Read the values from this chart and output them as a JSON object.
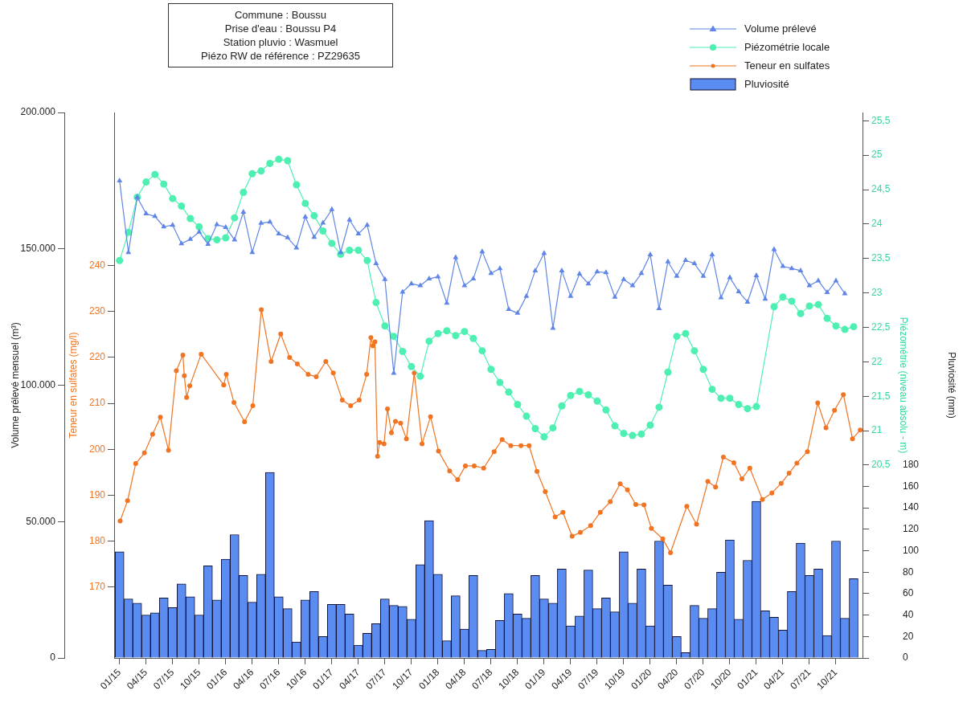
{
  "chart_data": [
    {
      "type": "line",
      "annotations": [
        "Commune : Boussu",
        "Prise d'eau : Boussu P4",
        "Station pluvio : Wasmuel",
        "Piézo RW de référence : PZ29635"
      ],
      "ylabel": "Volume prélevé mensuel (m³)",
      "y2label": "Piézométrie (niveau absolu - m)",
      "y3label": "Teneur en sulfates (mg/l)",
      "x": [
        "2015-01",
        "2015-02",
        "2015-03",
        "2015-04",
        "2015-05",
        "2015-06",
        "2015-07",
        "2015-08",
        "2015-09",
        "2015-10",
        "2015-11",
        "2015-12",
        "2016-01",
        "2016-02",
        "2016-03",
        "2016-04",
        "2016-05",
        "2016-06",
        "2016-07",
        "2016-08",
        "2016-09",
        "2016-10",
        "2016-11",
        "2016-12",
        "2017-01",
        "2017-02",
        "2017-03",
        "2017-04",
        "2017-05",
        "2017-06",
        "2017-07",
        "2017-08",
        "2017-09",
        "2017-10",
        "2017-11",
        "2017-12",
        "2018-01",
        "2018-02",
        "2018-03",
        "2018-04",
        "2018-05",
        "2018-06",
        "2018-07",
        "2018-08",
        "2018-09",
        "2018-10",
        "2018-11",
        "2018-12",
        "2019-01",
        "2019-02",
        "2019-03",
        "2019-04",
        "2019-05",
        "2019-06",
        "2019-07",
        "2019-08",
        "2019-09",
        "2019-10",
        "2019-11",
        "2019-12",
        "2020-01",
        "2020-02",
        "2020-03",
        "2020-04",
        "2020-05",
        "2020-06",
        "2020-07",
        "2020-08",
        "2020-09",
        "2020-10",
        "2020-11",
        "2020-12",
        "2021-01",
        "2021-02",
        "2021-03",
        "2021-04",
        "2021-05",
        "2021-06",
        "2021-07",
        "2021-08",
        "2021-09",
        "2021-10",
        "2021-11",
        "2021-12"
      ],
      "series": [
        {
          "name": "Volume prélevé",
          "color": "#5f86e6",
          "marker": "triangle",
          "values": [
            175000,
            148700,
            168900,
            162900,
            161900,
            158100,
            158700,
            151900,
            153500,
            156200,
            151700,
            158900,
            157900,
            153300,
            163500,
            148700,
            159400,
            159900,
            155500,
            154100,
            150400,
            161700,
            154300,
            159500,
            164400,
            148700,
            160600,
            155500,
            158700,
            144600,
            138800,
            104400,
            134200,
            137200,
            136500,
            139000,
            139800,
            130100,
            146800,
            136500,
            139000,
            149000,
            141000,
            142800,
            127800,
            126400,
            132600,
            142000,
            148400,
            120900,
            142000,
            132600,
            140800,
            137200,
            141600,
            141300,
            132300,
            138800,
            136500,
            141000,
            147900,
            128100,
            145300,
            140000,
            145800,
            144600,
            140000,
            147900,
            132100,
            139500,
            134300,
            130500,
            140200,
            131600,
            149800,
            143600,
            142800,
            142000,
            136500,
            138300,
            134000,
            138300,
            133600,
            null
          ]
        },
        {
          "name": "Piézométrie locale",
          "color": "#4ef0b2",
          "marker": "circle",
          "axis": "y2",
          "values": [
            23.47,
            23.88,
            24.39,
            24.61,
            24.72,
            24.58,
            24.37,
            24.26,
            24.08,
            23.96,
            23.79,
            23.77,
            23.8,
            24.09,
            24.46,
            24.73,
            24.77,
            24.88,
            24.94,
            24.92,
            24.57,
            24.3,
            24.12,
            23.9,
            23.72,
            23.56,
            23.62,
            23.62,
            23.47,
            22.86,
            22.52,
            22.37,
            22.15,
            21.93,
            21.79,
            22.3,
            22.41,
            22.45,
            22.38,
            22.44,
            22.34,
            22.16,
            21.89,
            21.7,
            21.56,
            21.38,
            21.21,
            21.03,
            20.91,
            21.04,
            21.36,
            21.51,
            21.57,
            21.52,
            21.43,
            21.3,
            21.07,
            20.96,
            20.93,
            20.95,
            21.08,
            21.34,
            21.85,
            22.37,
            22.41,
            22.16,
            21.89,
            21.6,
            21.47,
            21.47,
            21.38,
            21.32,
            21.35,
            null,
            22.8,
            22.94,
            22.88,
            22.7,
            22.81,
            22.83,
            22.63,
            22.52,
            22.47,
            22.51
          ]
        },
        {
          "name": "Teneur en sulfates",
          "color": "#f07422",
          "marker": "circle",
          "axis": "y3",
          "x": [
            "2015-01-03",
            "2015-01-29",
            "2015-02-24",
            "2015-03-26",
            "2015-04-23",
            "2015-05-20",
            "2015-06-17",
            "2015-07-14",
            "2015-08-06",
            "2015-08-11",
            "2015-08-19",
            "2015-08-30",
            "2015-10-08",
            "2015-12-25",
            "2016-01-03",
            "2016-01-30",
            "2016-03-05",
            "2016-04-03",
            "2016-05-02",
            "2016-06-05",
            "2016-07-08",
            "2016-08-08",
            "2016-09-04",
            "2016-10-11",
            "2016-11-08",
            "2016-12-11",
            "2017-01-06",
            "2017-02-06",
            "2017-03-05",
            "2017-04-04",
            "2017-04-29",
            "2017-05-14",
            "2017-05-21",
            "2017-05-28",
            "2017-06-06",
            "2017-06-13",
            "2017-06-28",
            "2017-07-10",
            "2017-07-24",
            "2017-08-07",
            "2017-08-25",
            "2017-09-14",
            "2017-10-11",
            "2017-11-07",
            "2017-12-06",
            "2018-01-03",
            "2018-02-10",
            "2018-03-08",
            "2018-04-04",
            "2018-05-04",
            "2018-06-06",
            "2018-07-12",
            "2018-08-09",
            "2018-09-08",
            "2018-10-13",
            "2018-11-10",
            "2018-12-07",
            "2019-01-05",
            "2019-02-08",
            "2019-03-05",
            "2019-04-06",
            "2019-05-04",
            "2019-06-09",
            "2019-07-12",
            "2019-08-16",
            "2019-09-19",
            "2019-10-14",
            "2019-11-12",
            "2019-12-10",
            "2020-01-05",
            "2020-02-13",
            "2020-03-10",
            "2020-05-05",
            "2020-06-08",
            "2020-07-17",
            "2020-08-13",
            "2020-09-09",
            "2020-10-15",
            "2020-11-12",
            "2020-12-09",
            "2021-01-22",
            "2021-02-22",
            "2021-03-26",
            "2021-04-22",
            "2021-05-19",
            "2021-06-24",
            "2021-07-30",
            "2021-08-28",
            "2021-09-26",
            "2021-10-27",
            "2021-11-27",
            "2021-12-24"
          ],
          "values": [
            184.4,
            188.8,
            196.9,
            199.2,
            203.3,
            207.0,
            199.8,
            217.1,
            220.5,
            216.0,
            211.3,
            213.8,
            220.7,
            214.0,
            216.3,
            210.2,
            206.0,
            209.5,
            230.4,
            219.1,
            225.1,
            220.0,
            218.6,
            216.3,
            215.8,
            219.1,
            216.6,
            210.7,
            209.5,
            210.7,
            216.3,
            224.3,
            222.5,
            223.4,
            198.5,
            201.5,
            201.2,
            208.8,
            203.6,
            206.1,
            205.7,
            202.3,
            216.6,
            201.2,
            207.1,
            199.6,
            195.3,
            193.4,
            196.4,
            196.4,
            195.9,
            199.5,
            202.1,
            200.8,
            200.8,
            200.8,
            195.2,
            190.8,
            185.3,
            186.3,
            181.1,
            181.9,
            183.4,
            186.3,
            188.6,
            192.5,
            191.2,
            188.0,
            187.9,
            182.8,
            180.5,
            177.5,
            187.6,
            183.7,
            193.0,
            191.8,
            198.3,
            197.1,
            193.6,
            195.9,
            189.1,
            190.5,
            192.6,
            194.8,
            197.0,
            199.5,
            210.1,
            204.7,
            208.5,
            211.9,
            202.3,
            204.2
          ]
        }
      ],
      "xlim": [
        "2014-12-13",
        "2022-01-01"
      ],
      "xticks": [
        {
          "value": "2015-01",
          "label": "01/15"
        },
        {
          "value": "2015-04",
          "label": "04/15"
        },
        {
          "value": "2015-07",
          "label": "07/15"
        },
        {
          "value": "2015-10",
          "label": "10/15"
        },
        {
          "value": "2016-01",
          "label": "01/16"
        },
        {
          "value": "2016-04",
          "label": "04/16"
        },
        {
          "value": "2016-07",
          "label": "07/16"
        },
        {
          "value": "2016-10",
          "label": "10/16"
        },
        {
          "value": "2017-01",
          "label": "01/17"
        },
        {
          "value": "2017-04",
          "label": "04/17"
        },
        {
          "value": "2017-07",
          "label": "07/17"
        },
        {
          "value": "2017-10",
          "label": "10/17"
        },
        {
          "value": "2018-01",
          "label": "01/18"
        },
        {
          "value": "2018-04",
          "label": "04/18"
        },
        {
          "value": "2018-07",
          "label": "07/18"
        },
        {
          "value": "2018-10",
          "label": "10/18"
        },
        {
          "value": "2019-01",
          "label": "01/19"
        },
        {
          "value": "2019-04",
          "label": "04/19"
        },
        {
          "value": "2019-07",
          "label": "07/19"
        },
        {
          "value": "2019-10",
          "label": "10/19"
        },
        {
          "value": "2020-01",
          "label": "01/20"
        },
        {
          "value": "2020-04",
          "label": "04/20"
        },
        {
          "value": "2020-07",
          "label": "07/20"
        },
        {
          "value": "2020-10",
          "label": "10/20"
        },
        {
          "value": "2021-01",
          "label": "01/21"
        },
        {
          "value": "2021-04",
          "label": "04/21"
        },
        {
          "value": "2021-07",
          "label": "07/21"
        },
        {
          "value": "2021-10",
          "label": "10/21"
        }
      ],
      "ylim": [
        0,
        200000
      ],
      "yticks": [
        0,
        {
          "value": 50000,
          "label": "50.000"
        },
        {
          "value": 100000,
          "label": "100.000"
        },
        {
          "value": 150000,
          "label": "150.000"
        },
        {
          "value": 200000,
          "label": "200.000"
        }
      ],
      "y2lim": [
        17.7,
        25.62
      ],
      "y2ticks": [
        {
          "value": 20.5,
          "label": "20,5"
        },
        21,
        {
          "value": 21.5,
          "label": "21,5"
        },
        22,
        {
          "value": 22.5,
          "label": "22,5"
        },
        23,
        {
          "value": 23.5,
          "label": "23,5"
        },
        24,
        {
          "value": 24.5,
          "label": "24,5"
        },
        25,
        {
          "value": 25.5,
          "label": "25,5"
        }
      ],
      "y3lim": [
        154.6,
        273.3
      ],
      "y3ticks": [
        170,
        180,
        190,
        200,
        210,
        220,
        230,
        240
      ],
      "grid": false,
      "legend": "top right",
      "line_style": "solid"
    },
    {
      "type": "bar",
      "ylabel": "Pluviosité (mm)",
      "x": [
        "2015-01",
        "2015-02",
        "2015-03",
        "2015-04",
        "2015-05",
        "2015-06",
        "2015-07",
        "2015-08",
        "2015-09",
        "2015-10",
        "2015-11",
        "2015-12",
        "2016-01",
        "2016-02",
        "2016-03",
        "2016-04",
        "2016-05",
        "2016-06",
        "2016-07",
        "2016-08",
        "2016-09",
        "2016-10",
        "2016-11",
        "2016-12",
        "2017-01",
        "2017-02",
        "2017-03",
        "2017-04",
        "2017-05",
        "2017-06",
        "2017-07",
        "2017-08",
        "2017-09",
        "2017-10",
        "2017-11",
        "2017-12",
        "2018-01",
        "2018-02",
        "2018-03",
        "2018-04",
        "2018-05",
        "2018-06",
        "2018-07",
        "2018-08",
        "2018-09",
        "2018-10",
        "2018-11",
        "2018-12",
        "2019-01",
        "2019-02",
        "2019-03",
        "2019-04",
        "2019-05",
        "2019-06",
        "2019-07",
        "2019-08",
        "2019-09",
        "2019-10",
        "2019-11",
        "2019-12",
        "2020-01",
        "2020-02",
        "2020-03",
        "2020-04",
        "2020-05",
        "2020-06",
        "2020-07",
        "2020-08",
        "2020-09",
        "2020-10",
        "2020-11",
        "2020-12",
        "2021-01",
        "2021-02",
        "2021-03",
        "2021-04",
        "2021-05",
        "2021-06",
        "2021-07",
        "2021-08",
        "2021-09",
        "2021-10",
        "2021-11",
        "2021-12"
      ],
      "series": [
        {
          "name": "Pluviosité",
          "color": "#5b8cf2",
          "values": [
            99,
            55,
            51,
            40,
            42,
            56,
            47,
            69,
            57,
            40,
            86,
            54,
            92,
            115,
            77,
            52,
            78,
            173,
            57,
            46,
            15,
            54,
            62,
            20,
            50,
            50,
            41,
            12,
            23,
            32,
            55,
            49,
            48,
            36,
            87,
            128,
            78,
            16,
            58,
            27,
            77,
            7,
            8,
            35,
            60,
            41,
            37,
            77,
            55,
            51,
            83,
            30,
            39,
            82,
            46,
            56,
            43,
            99,
            51,
            83,
            30,
            109,
            68,
            20,
            5,
            49,
            37,
            46,
            80,
            110,
            36,
            91,
            146,
            44,
            38,
            26,
            62,
            107,
            77,
            83,
            21,
            109,
            37,
            74
          ]
        }
      ],
      "xlim": [
        "2014-12-13",
        "2022-01-01"
      ],
      "ylim": [
        0,
        508.7
      ],
      "yticks": [
        0,
        20,
        40,
        60,
        80,
        100,
        120,
        140,
        160,
        180
      ],
      "tick_labels": "y",
      "grid": false,
      "legend": "top right"
    }
  ]
}
